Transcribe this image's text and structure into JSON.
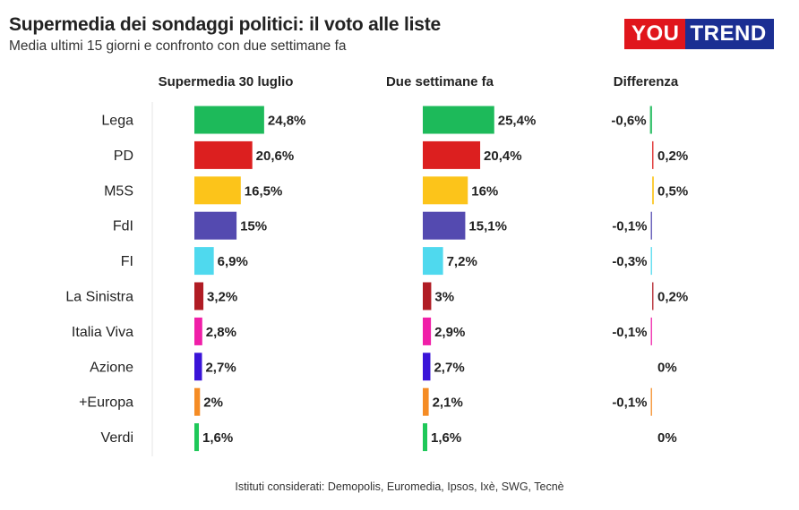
{
  "title": "Supermedia dei sondaggi politici: il voto alle liste",
  "subtitle": "Media ultimi 15 giorni e confronto con due settimane fa",
  "logo": {
    "part1": "YOU",
    "part2": "TREND"
  },
  "source": "Istituti considerati: Demopolis, Euromedia, Ipsos, Ixè, SWG, Tecnè",
  "chart_data": {
    "type": "bar",
    "categories": [
      "Lega",
      "PD",
      "M5S",
      "FdI",
      "FI",
      "La Sinistra",
      "Italia Viva",
      "Azione",
      "+Europa",
      "Verdi"
    ],
    "colors": [
      "#1dba5a",
      "#dc1f1f",
      "#fcc41a",
      "#544ab0",
      "#4fd9ee",
      "#b01c24",
      "#f01fa8",
      "#3a14d8",
      "#f58c25",
      "#1ec859"
    ],
    "series": [
      {
        "name": "Supermedia 30 luglio",
        "values": [
          24.8,
          20.6,
          16.5,
          15,
          6.9,
          3.2,
          2.8,
          2.7,
          2,
          1.6
        ],
        "labels": [
          "24,8%",
          "20,6%",
          "16,5%",
          "15%",
          "6,9%",
          "3,2%",
          "2,8%",
          "2,7%",
          "2%",
          "1,6%"
        ]
      },
      {
        "name": "Due settimane fa",
        "values": [
          25.4,
          20.4,
          16,
          15.1,
          7.2,
          3,
          2.9,
          2.7,
          2.1,
          1.6
        ],
        "labels": [
          "25,4%",
          "20,4%",
          "16%",
          "15,1%",
          "7,2%",
          "3%",
          "2,9%",
          "2,7%",
          "2,1%",
          "1,6%"
        ]
      },
      {
        "name": "Differenza",
        "values": [
          -0.6,
          0.2,
          0.5,
          -0.1,
          -0.3,
          0.2,
          -0.1,
          0,
          -0.1,
          0
        ],
        "labels": [
          "-0,6%",
          "0,2%",
          "0,5%",
          "-0,1%",
          "-0,3%",
          "0,2%",
          "-0,1%",
          "0%",
          "-0,1%",
          "0%"
        ]
      }
    ]
  }
}
